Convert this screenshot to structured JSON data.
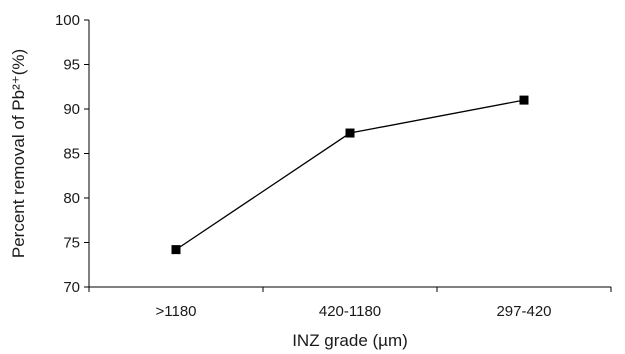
{
  "chart_data": {
    "type": "line",
    "title": "",
    "xlabel": "INZ grade (µm)",
    "ylabel": "Percent removal of Pb²⁺(%)",
    "categories": [
      ">1180",
      "420-1180",
      "297-420"
    ],
    "series": [
      {
        "values": [
          74.2,
          87.3,
          91.0
        ]
      }
    ],
    "ylim": [
      70,
      100
    ],
    "yticks": [
      70,
      75,
      80,
      85,
      90,
      95,
      100
    ],
    "grid": false,
    "legend": "none",
    "marker": "square",
    "line_color": "#000000"
  }
}
